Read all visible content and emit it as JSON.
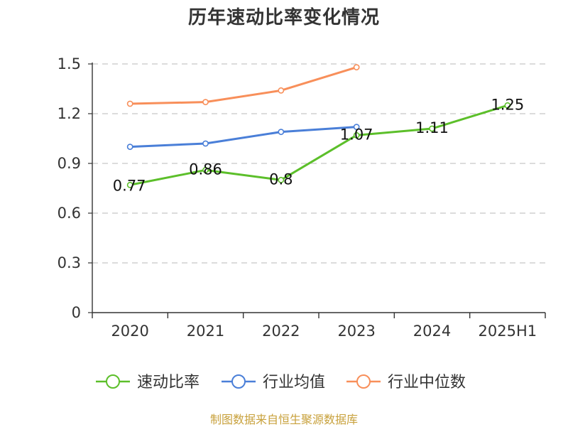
{
  "title": "历年速动比率变化情况",
  "source_note": "制图数据来自恒生聚源数据库",
  "chart_data": {
    "type": "line",
    "title": "历年速动比率变化情况",
    "xlabel": "",
    "ylabel": "",
    "categories": [
      "2020",
      "2021",
      "2022",
      "2023",
      "2024",
      "2025H1"
    ],
    "ylim": [
      0,
      1.5
    ],
    "yticks": [
      0,
      0.3,
      0.6,
      0.9,
      1.2,
      1.5
    ],
    "ytick_labels": [
      "0",
      "0.3",
      "0.6",
      "0.9",
      "1.2",
      "1.5"
    ],
    "grid": "horizontal-dashed",
    "legend_position": "bottom",
    "series": [
      {
        "name": "速动比率",
        "color": "#5cbf2a",
        "values": [
          0.77,
          0.86,
          0.8,
          1.07,
          1.11,
          1.25
        ],
        "labels": [
          "0.77",
          "0.86",
          "0.8",
          "1.07",
          "1.11",
          "1.25"
        ]
      },
      {
        "name": "行业均值",
        "color": "#4a7fd8",
        "values": [
          1.0,
          1.02,
          1.09,
          1.12,
          null,
          null
        ],
        "labels": []
      },
      {
        "name": "行业中位数",
        "color": "#f88f5a",
        "values": [
          1.26,
          1.27,
          1.34,
          1.48,
          null,
          null
        ],
        "labels": []
      }
    ]
  }
}
